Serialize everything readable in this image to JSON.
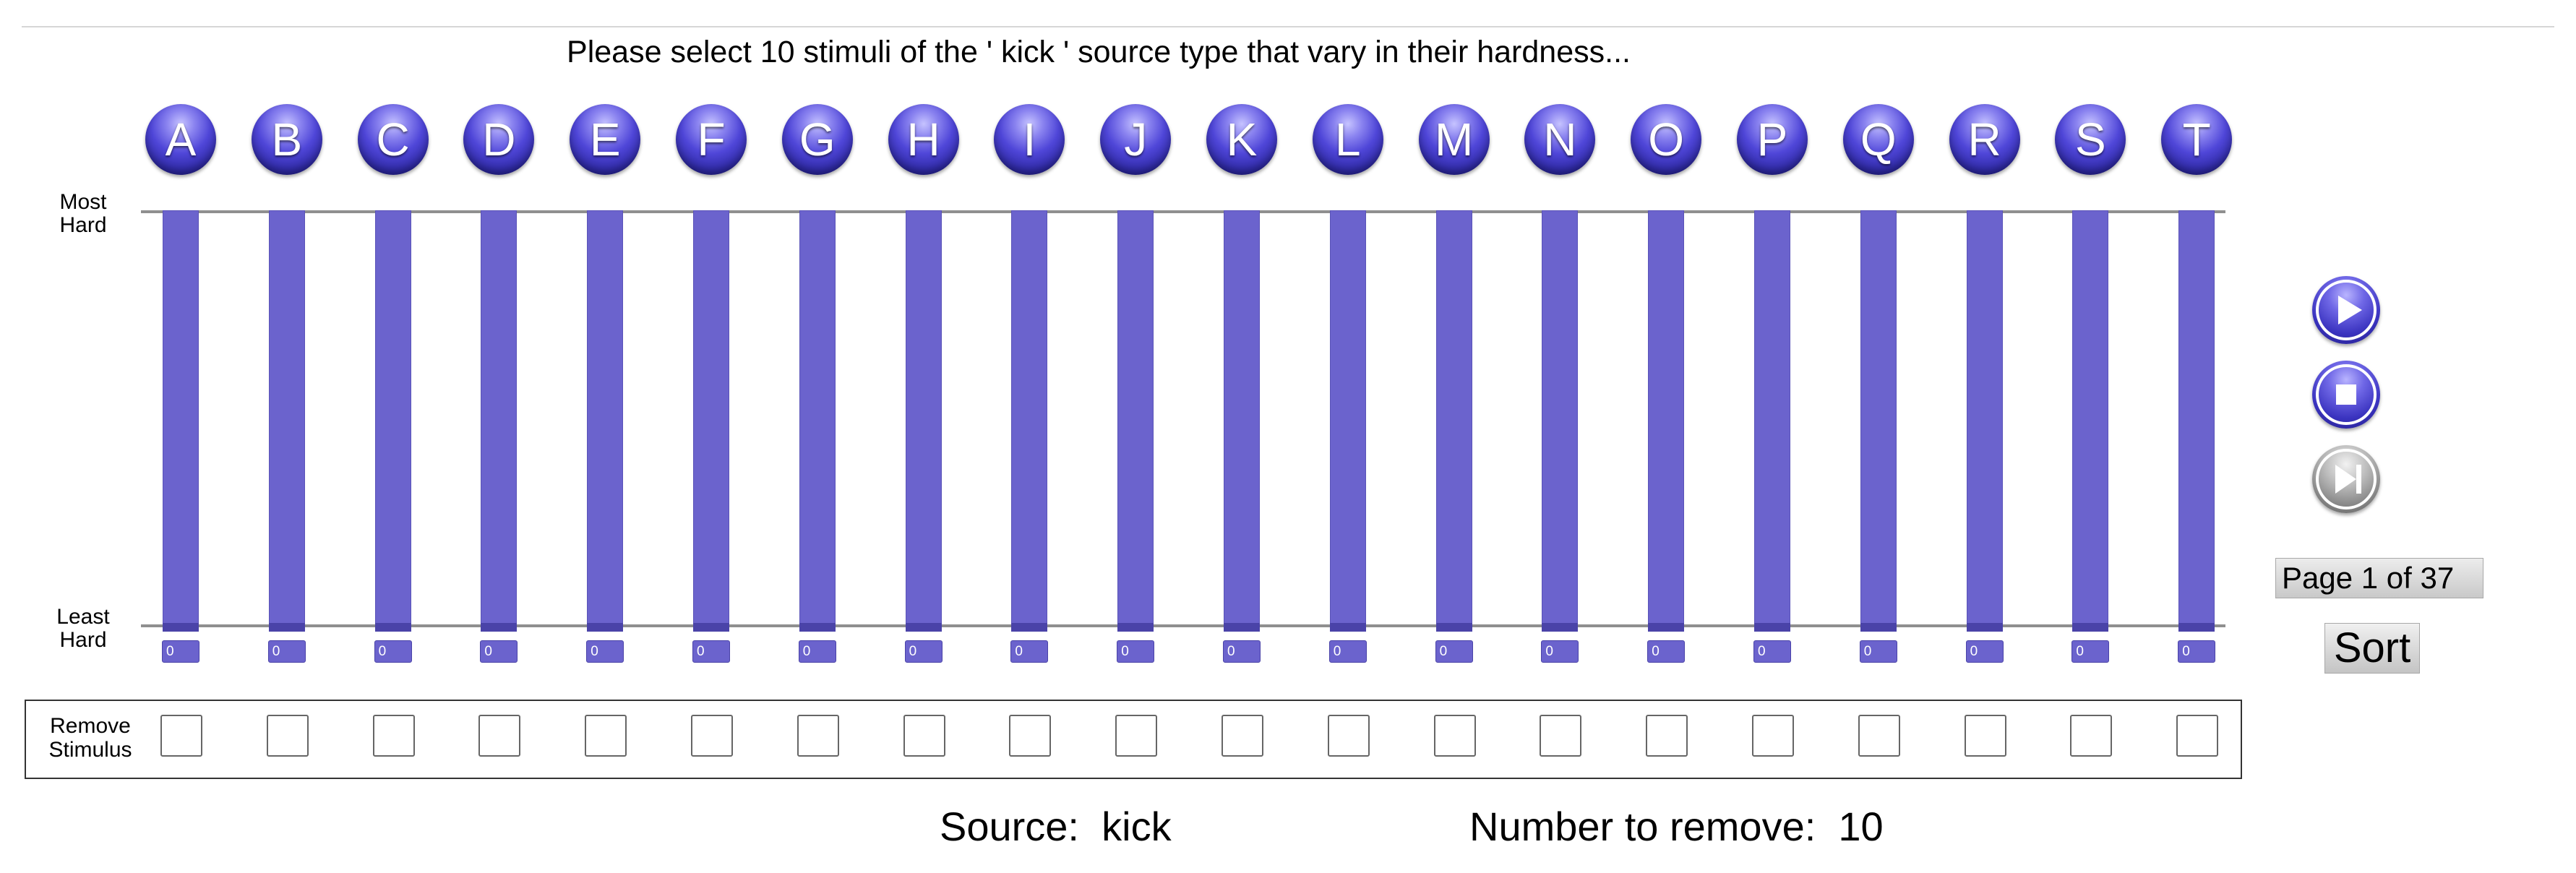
{
  "instruction": "Please select 10 stimuli of the ' kick ' source type that vary in their hardness...",
  "scale": {
    "top_label": [
      "Most",
      "Hard"
    ],
    "bottom_label": [
      "Least",
      "Hard"
    ]
  },
  "stimuli": [
    {
      "letter": "A",
      "value": "0",
      "level": 1.0
    },
    {
      "letter": "B",
      "value": "0",
      "level": 1.0
    },
    {
      "letter": "C",
      "value": "0",
      "level": 1.0
    },
    {
      "letter": "D",
      "value": "0",
      "level": 1.0
    },
    {
      "letter": "E",
      "value": "0",
      "level": 1.0
    },
    {
      "letter": "F",
      "value": "0",
      "level": 1.0
    },
    {
      "letter": "G",
      "value": "0",
      "level": 1.0
    },
    {
      "letter": "H",
      "value": "0",
      "level": 1.0
    },
    {
      "letter": "I",
      "value": "0",
      "level": 1.0
    },
    {
      "letter": "J",
      "value": "0",
      "level": 1.0
    },
    {
      "letter": "K",
      "value": "0",
      "level": 1.0
    },
    {
      "letter": "L",
      "value": "0",
      "level": 1.0
    },
    {
      "letter": "M",
      "value": "0",
      "level": 1.0
    },
    {
      "letter": "N",
      "value": "0",
      "level": 1.0
    },
    {
      "letter": "O",
      "value": "0",
      "level": 1.0
    },
    {
      "letter": "P",
      "value": "0",
      "level": 1.0
    },
    {
      "letter": "Q",
      "value": "0",
      "level": 1.0
    },
    {
      "letter": "R",
      "value": "0",
      "level": 1.0
    },
    {
      "letter": "S",
      "value": "0",
      "level": 1.0
    },
    {
      "letter": "T",
      "value": "0",
      "level": 1.0
    }
  ],
  "remove_panel": {
    "label": [
      "Remove",
      "Stimulus"
    ]
  },
  "controls": {
    "icons": [
      "play-icon",
      "stop-icon",
      "skip-next-icon"
    ]
  },
  "page": {
    "indicator": "Page 1 of 37"
  },
  "sort_label": "Sort",
  "footer": {
    "source_label": "Source:",
    "source_value": "kick",
    "remove_label": "Number to remove:",
    "remove_value": "10"
  },
  "colors": {
    "bar": "#6b63cd",
    "button_blue": "#4f46d8",
    "button_grey": "#858585"
  }
}
